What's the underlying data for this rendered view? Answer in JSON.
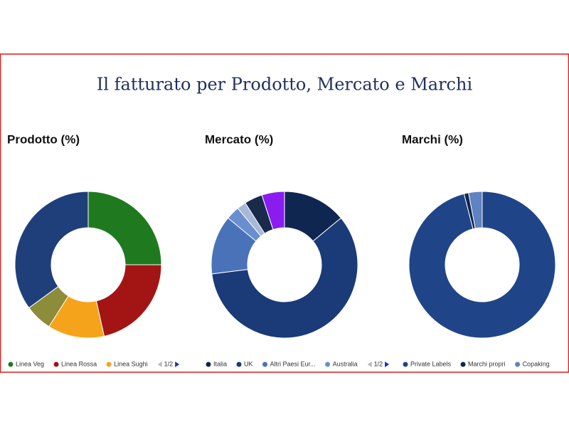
{
  "title": "Il fatturato per Prodotto, Mercato e Marchi",
  "chart_data": [
    {
      "type": "pie",
      "title": "Prodotto (%)",
      "categories": [
        "Linea Veg",
        "Linea Rossa",
        "Linea Sughi",
        null,
        null
      ],
      "values": [
        25,
        21.5,
        12.5,
        6,
        35
      ],
      "colors": [
        "#1f7a1f",
        "#a31515",
        "#f5a31a",
        "#8c8c3a",
        "#1f3f7a"
      ],
      "legend_page": "1/2"
    },
    {
      "type": "pie",
      "title": "Mercato (%)",
      "categories": [
        "Italia",
        "UK",
        "Altri Paesi Eur...",
        "Australia",
        null,
        null,
        null
      ],
      "values": [
        14,
        59,
        13,
        3,
        2,
        4,
        5
      ],
      "colors": [
        "#0f2650",
        "#1a3a78",
        "#4a72b8",
        "#6a8fd0",
        "#a7b8d8",
        "#1a2a4a",
        "#8a1cf0"
      ],
      "legend_page": "1/2"
    },
    {
      "type": "pie",
      "title": "Marchi (%)",
      "categories": [
        "Private Labels",
        "Marchi propri",
        "Copaking"
      ],
      "values": [
        96,
        1,
        3
      ],
      "colors": [
        "#1f4588",
        "#0f2650",
        "#5f82c0"
      ]
    }
  ]
}
